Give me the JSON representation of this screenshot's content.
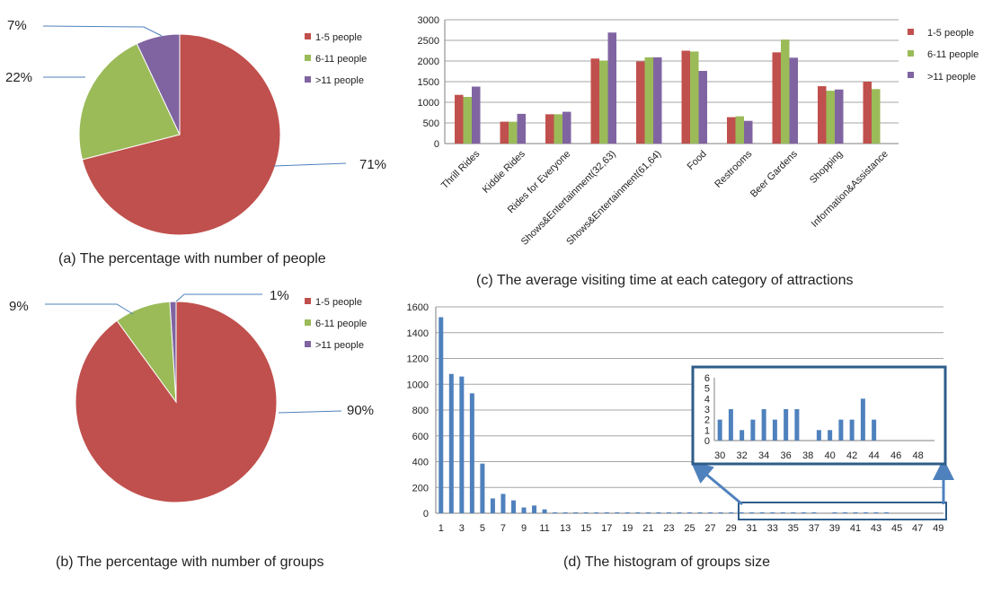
{
  "colors": {
    "series1": "#C0504D",
    "series2": "#9BBB59",
    "series3": "#8064A2",
    "histogram": "#4F81BD",
    "highlight": "#2E5D8A",
    "grid": "#A6A6A6"
  },
  "chart_data": [
    {
      "id": "a",
      "type": "pie",
      "caption": "(a) The percentage with number of people",
      "labels": [
        "1-5 people",
        "6-11 people",
        ">11 people"
      ],
      "values": [
        71,
        22,
        7
      ],
      "value_labels": [
        "71%",
        "22%",
        "7%"
      ],
      "legend": "right"
    },
    {
      "id": "b",
      "type": "pie",
      "caption": "(b) The percentage with number of groups",
      "labels": [
        "1-5 people",
        "6-11 people",
        ">11 people"
      ],
      "values": [
        90,
        9,
        1
      ],
      "value_labels": [
        "90%",
        "9%",
        "1%"
      ],
      "legend": "right"
    },
    {
      "id": "c",
      "type": "bar",
      "caption": "(c) The average visiting time at each category of attractions",
      "categories": [
        "Thrill Rides",
        "Kiddie Rides",
        "Rides for Everyone",
        "Shows&Entertainment(32,63)",
        "Shows&Entertainment(61,64)",
        "Food",
        "Restrooms",
        "Beer Gardens",
        "Shopping",
        "Information&Assistance"
      ],
      "series": [
        {
          "name": "1-5 people",
          "values": [
            1180,
            530,
            710,
            2060,
            1990,
            2250,
            640,
            2210,
            1390,
            1500
          ]
        },
        {
          "name": "6-11 people",
          "values": [
            1130,
            530,
            710,
            2010,
            2090,
            2230,
            660,
            2520,
            1280,
            1320
          ]
        },
        {
          "name": ">11 people",
          "values": [
            1380,
            720,
            770,
            2690,
            2090,
            1760,
            550,
            2080,
            1310,
            0
          ]
        }
      ],
      "ylim": [
        0,
        3000
      ],
      "yticks": [
        "0",
        "500",
        "1000",
        "1500",
        "2000",
        "2500",
        "3000"
      ],
      "legend": "right"
    },
    {
      "id": "d",
      "type": "bar",
      "caption": "(d) The histogram of groups size",
      "x": [
        1,
        2,
        3,
        4,
        5,
        6,
        7,
        8,
        9,
        10,
        11,
        12,
        13,
        14,
        15,
        16,
        17,
        18,
        19,
        20,
        21,
        22,
        23,
        24,
        25,
        26,
        27,
        28,
        29,
        30,
        31,
        32,
        33,
        34,
        35,
        36,
        37,
        38,
        39,
        40,
        41,
        42,
        43,
        44,
        45,
        46,
        47,
        48,
        49
      ],
      "values": [
        1520,
        1080,
        1060,
        930,
        385,
        115,
        150,
        100,
        45,
        60,
        30,
        6,
        5,
        5,
        4,
        4,
        4,
        3,
        3,
        3,
        3,
        3,
        2,
        3,
        2,
        3,
        2,
        2,
        2,
        2,
        3,
        1,
        2,
        3,
        2,
        3,
        3,
        0,
        1,
        1,
        2,
        2,
        4,
        2,
        0,
        0,
        0,
        0,
        0
      ],
      "xticks": [
        "1",
        "3",
        "5",
        "7",
        "9",
        "11",
        "13",
        "15",
        "17",
        "19",
        "21",
        "23",
        "25",
        "27",
        "29",
        "31",
        "33",
        "35",
        "37",
        "39",
        "41",
        "43",
        "45",
        "47",
        "49"
      ],
      "yticks": [
        "0",
        "200",
        "400",
        "600",
        "800",
        "1000",
        "1200",
        "1400",
        "1600"
      ],
      "ylim": [
        0,
        1600
      ],
      "inset": {
        "x": [
          30,
          31,
          32,
          33,
          34,
          35,
          36,
          37,
          38,
          39,
          40,
          41,
          42,
          43,
          44,
          45,
          46,
          47,
          48,
          49
        ],
        "values": [
          2,
          3,
          1,
          2,
          3,
          2,
          3,
          3,
          0,
          1,
          1,
          2,
          2,
          4,
          2,
          0,
          0,
          0,
          0,
          0
        ],
        "xticks": [
          "30",
          "32",
          "34",
          "36",
          "38",
          "40",
          "42",
          "44",
          "46",
          "48"
        ],
        "yticks": [
          "0",
          "1",
          "2",
          "3",
          "4",
          "5",
          "6"
        ],
        "ylim": [
          0,
          6
        ]
      }
    }
  ]
}
